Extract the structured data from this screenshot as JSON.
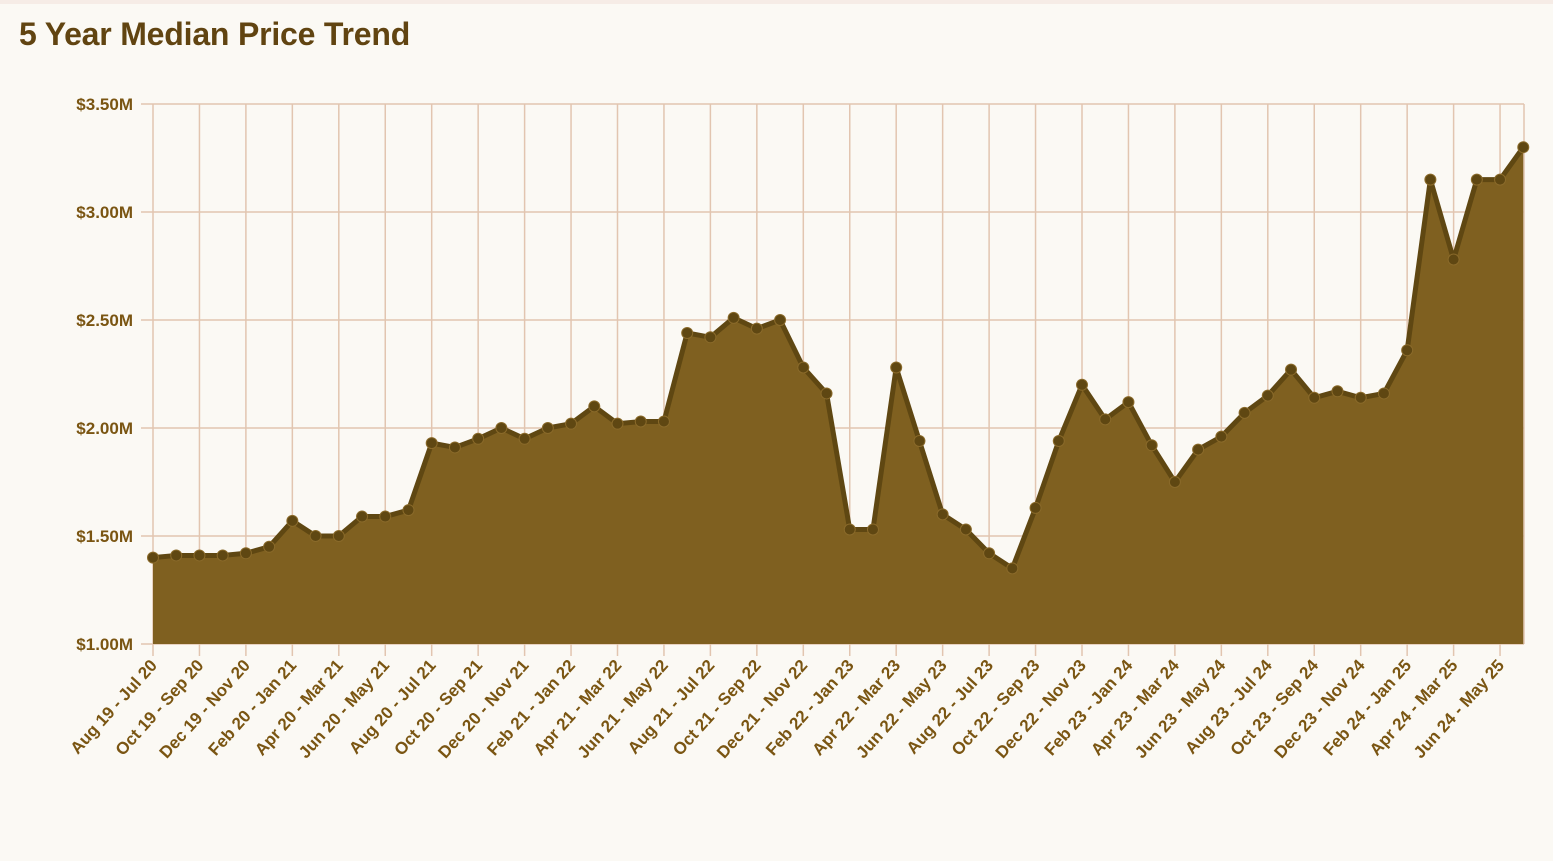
{
  "page": {
    "title": "5 Year Median Price Trend"
  },
  "colors": {
    "area_fill": "#7f6020",
    "line": "#5f4712",
    "point": "#5f4712",
    "grid": "#e2c5b0",
    "label_text": "#7a5512",
    "title_text": "#614411",
    "background": "#fbf9f4"
  },
  "chart_data": {
    "type": "area",
    "title": "5 Year Median Price Trend",
    "xlabel": "",
    "ylabel": "",
    "ylim": [
      1.0,
      3.5
    ],
    "y_unit": "millions USD",
    "grid": true,
    "y_ticks": [
      1.0,
      1.5,
      2.0,
      2.5,
      3.0,
      3.5
    ],
    "y_tick_labels": [
      "$1.00M",
      "$1.50M",
      "$2.00M",
      "$2.50M",
      "$3.00M",
      "$3.50M"
    ],
    "x_tick_labels": [
      "Aug 19 - Jul 20",
      "Oct 19 - Sep 20",
      "Dec 19 - Nov 20",
      "Feb 20 - Jan 21",
      "Apr 20 - Mar 21",
      "Jun 20 - May 21",
      "Aug 20 - Jul 21",
      "Oct 20 - Sep 21",
      "Dec 20 - Nov 21",
      "Feb 21 - Jan 22",
      "Apr 21 - Mar 22",
      "Jun 21 - May 22",
      "Aug 21 - Jul 22",
      "Oct 21 - Sep 22",
      "Dec 21 - Nov 22",
      "Feb 22 - Jan 23",
      "Apr 22 - Mar 23",
      "Jun 22 - May 23",
      "Aug 22 - Jul 23",
      "Oct 22 - Sep 23",
      "Dec 22 - Nov 23",
      "Feb 23 - Jan 24",
      "Apr 23 - Mar 24",
      "Jun 23 - May 24",
      "Aug 23 - Jul 24",
      "Oct 23 - Sep 24",
      "Dec 23 - Nov 24",
      "Feb 24 - Jan 25",
      "Apr 24 - Mar 25",
      "Jun 24 - May 25"
    ],
    "series": [
      {
        "values": [
          1.4,
          1.41,
          1.41,
          1.41,
          1.42,
          1.45,
          1.57,
          1.5,
          1.5,
          1.59,
          1.59,
          1.62,
          1.93,
          1.91,
          1.95,
          2.0,
          1.95,
          2.0,
          2.02,
          2.1,
          2.02,
          2.03,
          2.03,
          2.44,
          2.42,
          2.51,
          2.46,
          2.5,
          2.28,
          2.16,
          1.53,
          1.53,
          2.28,
          1.94,
          1.6,
          1.53,
          1.42,
          1.35,
          1.63,
          1.94,
          2.2,
          2.04,
          2.12,
          1.92,
          1.75,
          1.9,
          1.96,
          2.07,
          2.15,
          2.27,
          2.14,
          2.17,
          2.14,
          2.16,
          2.36,
          3.15,
          2.78,
          3.15,
          3.15,
          3.3
        ]
      }
    ]
  }
}
